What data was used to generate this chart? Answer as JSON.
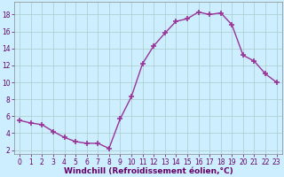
{
  "x": [
    0,
    1,
    2,
    3,
    4,
    5,
    6,
    7,
    8,
    9,
    10,
    11,
    12,
    13,
    14,
    15,
    16,
    17,
    18,
    19,
    20,
    21,
    22,
    23
  ],
  "y": [
    5.5,
    5.2,
    5.0,
    4.2,
    3.5,
    3.0,
    2.8,
    2.8,
    2.2,
    5.7,
    8.3,
    12.2,
    14.3,
    15.8,
    17.2,
    17.5,
    18.3,
    18.0,
    18.2,
    16.8,
    13.2,
    12.5,
    11.0,
    10.0
  ],
  "line_color": "#993399",
  "marker": "+",
  "marker_size": 4,
  "marker_lw": 1.2,
  "bg_color": "#cceeff",
  "grid_color": "#aacccc",
  "xlabel": "Windchill (Refroidissement éolien,°C)",
  "xlim": [
    -0.5,
    23.5
  ],
  "ylim": [
    1.5,
    19.5
  ],
  "yticks": [
    2,
    4,
    6,
    8,
    10,
    12,
    14,
    16,
    18
  ],
  "xticks": [
    0,
    1,
    2,
    3,
    4,
    5,
    6,
    7,
    8,
    9,
    10,
    11,
    12,
    13,
    14,
    15,
    16,
    17,
    18,
    19,
    20,
    21,
    22,
    23
  ],
  "tick_fontsize": 5.5,
  "xlabel_fontsize": 6.5,
  "line_width": 1.0
}
